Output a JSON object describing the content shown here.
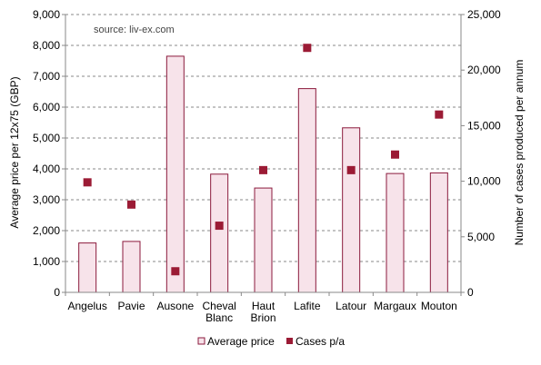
{
  "chart_data": {
    "type": "bar",
    "source_note": "source: liv-ex.com",
    "categories": [
      "Angelus",
      "Pavie",
      "Ausone",
      "Cheval Blanc",
      "Haut Brion",
      "Lafite",
      "Latour",
      "Margaux",
      "Mouton"
    ],
    "category_lines": [
      [
        "Angelus"
      ],
      [
        "Pavie"
      ],
      [
        "Ausone"
      ],
      [
        "Cheval",
        "Blanc"
      ],
      [
        "Haut",
        "Brion"
      ],
      [
        "Lafite"
      ],
      [
        "Latour"
      ],
      [
        "Margaux"
      ],
      [
        "Mouton"
      ]
    ],
    "series": [
      {
        "name": "Average price",
        "kind": "bar",
        "axis": "left",
        "color": "#f7e3ea",
        "stroke": "#8b1a3c",
        "values": [
          1600,
          1650,
          7650,
          3830,
          3380,
          6600,
          5330,
          3850,
          3870
        ]
      },
      {
        "name": "Cases p/a",
        "kind": "marker",
        "axis": "right",
        "color": "#9b1b35",
        "values": [
          9900,
          7900,
          1900,
          6000,
          11000,
          22000,
          11000,
          12400,
          16000
        ]
      }
    ],
    "ylabel": "Average price per 12x75 (GBP)",
    "y2label": "Number of cases produced per annum",
    "ylim": [
      0,
      9000
    ],
    "y2lim": [
      0,
      25000
    ],
    "yticks": [
      "0",
      "1,000",
      "2,000",
      "3,000",
      "4,000",
      "5,000",
      "6,000",
      "7,000",
      "8,000",
      "9,000"
    ],
    "y2ticks": [
      "0",
      "5,000",
      "10,000",
      "15,000",
      "20,000",
      "25,000"
    ],
    "grid": true,
    "legend": "bottom"
  }
}
